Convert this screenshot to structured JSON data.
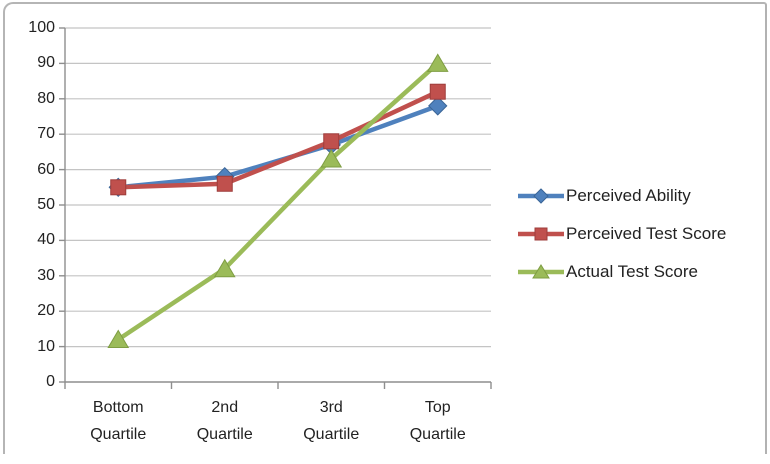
{
  "window": {
    "background": "#FFFFFF",
    "border_color": "#B5B5B5"
  },
  "chart_data": {
    "type": "line",
    "categories": [
      "Bottom Quartile",
      "2nd Quartile",
      "3rd Quartile",
      "Top Quartile"
    ],
    "series": [
      {
        "name": "Perceived Ability",
        "color": "#4F81BD",
        "edge": "#3A6597",
        "marker": "diamond",
        "values": [
          55,
          58,
          67,
          78
        ]
      },
      {
        "name": "Perceived Test Score",
        "color": "#C0504D",
        "edge": "#9E3D3B",
        "marker": "square",
        "values": [
          55,
          56,
          68,
          82
        ]
      },
      {
        "name": "Actual Test Score",
        "color": "#9BBB59",
        "edge": "#7E9D42",
        "marker": "triangle",
        "values": [
          12,
          32,
          63,
          90
        ]
      }
    ],
    "ylim": [
      0,
      100
    ],
    "yticks": [
      0,
      10,
      20,
      30,
      40,
      50,
      60,
      70,
      80,
      90,
      100
    ],
    "grid": "horizontal-major",
    "legend_position": "right",
    "axis_color": "#8E8E8E",
    "gridline_color": "#C4C4C4",
    "text_color": "#222222"
  }
}
